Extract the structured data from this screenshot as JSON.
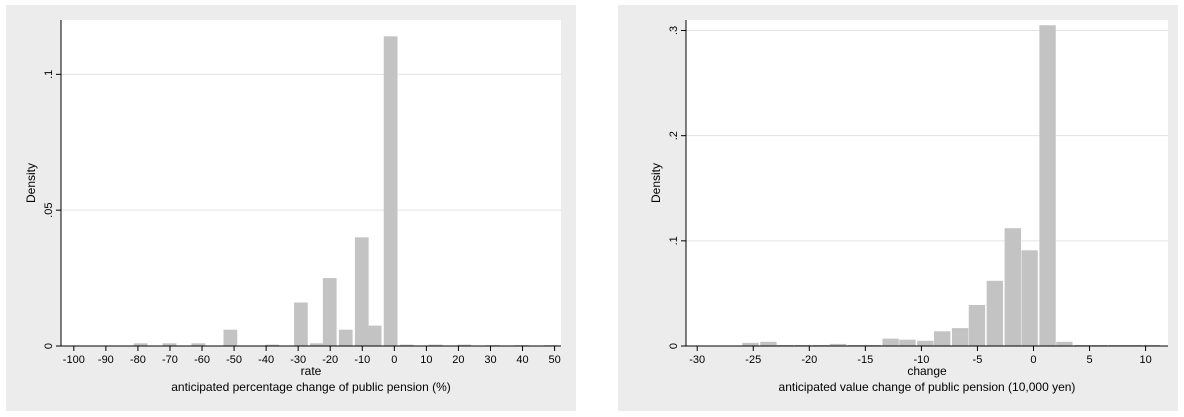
{
  "chart_data": [
    {
      "type": "bar",
      "ylabel": "Density",
      "xlabel": "rate",
      "note": "anticipated percentage change of public pension (%)",
      "xlim": [
        -104,
        52
      ],
      "ylim": [
        0,
        0.12
      ],
      "xticks": [
        -100,
        -90,
        -80,
        -70,
        -60,
        -50,
        -40,
        -30,
        -20,
        -10,
        0,
        10,
        20,
        30,
        40,
        50
      ],
      "xtick_labels": [
        "-100",
        "-90",
        "-80",
        "-70",
        "-60",
        "-50",
        "-40",
        "-30",
        "-20",
        "-10",
        "0",
        "10",
        "20",
        "30",
        "40",
        "50"
      ],
      "yticks": [
        0,
        0.05,
        0.1
      ],
      "ytick_labels": [
        "0",
        ".05",
        ".1"
      ],
      "bin_width": 4.6,
      "bars": [
        {
          "x": -79,
          "y": 0.001
        },
        {
          "x": -70,
          "y": 0.001
        },
        {
          "x": -61,
          "y": 0.001
        },
        {
          "x": -51,
          "y": 0.006
        },
        {
          "x": -38,
          "y": 0.0005
        },
        {
          "x": -29,
          "y": 0.016
        },
        {
          "x": -24,
          "y": 0.001
        },
        {
          "x": -20,
          "y": 0.025
        },
        {
          "x": -15,
          "y": 0.006
        },
        {
          "x": -10,
          "y": 0.04
        },
        {
          "x": -6,
          "y": 0.0075
        },
        {
          "x": -1,
          "y": 0.114
        },
        {
          "x": 4,
          "y": 0.0005
        },
        {
          "x": 13,
          "y": 0.0005
        },
        {
          "x": 22,
          "y": 0.0005
        },
        {
          "x": 31,
          "y": 0.0003
        },
        {
          "x": 40,
          "y": 0.0003
        },
        {
          "x": 49,
          "y": 0.0003
        }
      ],
      "grid": true,
      "colors": {
        "bar": "#c3c3c3",
        "plot_bg": "#ffffff",
        "outer_bg": "#ececec",
        "grid": "#e3e3e3"
      }
    },
    {
      "type": "bar",
      "ylabel": "Density",
      "xlabel": "change",
      "note": "anticipated value change of public pension (10,000 yen)",
      "xlim": [
        -31,
        12
      ],
      "ylim": [
        0,
        0.31
      ],
      "xticks": [
        -30,
        -25,
        -20,
        -15,
        -10,
        -5,
        0,
        5,
        10
      ],
      "xtick_labels": [
        "-30",
        "-25",
        "-20",
        "-15",
        "-10",
        "-5",
        "0",
        "5",
        "10"
      ],
      "yticks": [
        0,
        0.1,
        0.2,
        0.3
      ],
      "ytick_labels": [
        "0",
        ".1",
        ".2",
        ".3"
      ],
      "bin_width": 1.55,
      "bars": [
        {
          "x": -25.2,
          "y": 0.003
        },
        {
          "x": -23.6,
          "y": 0.004
        },
        {
          "x": -22.1,
          "y": 0.001
        },
        {
          "x": -20.5,
          "y": 0.001
        },
        {
          "x": -18.9,
          "y": 0.001
        },
        {
          "x": -17.4,
          "y": 0.002
        },
        {
          "x": -15.8,
          "y": 0.001
        },
        {
          "x": -14.3,
          "y": 0.001
        },
        {
          "x": -12.7,
          "y": 0.007
        },
        {
          "x": -11.2,
          "y": 0.006
        },
        {
          "x": -9.6,
          "y": 0.005
        },
        {
          "x": -8.1,
          "y": 0.014
        },
        {
          "x": -6.5,
          "y": 0.017
        },
        {
          "x": -5.0,
          "y": 0.039
        },
        {
          "x": -3.4,
          "y": 0.062
        },
        {
          "x": -1.8,
          "y": 0.112
        },
        {
          "x": -0.3,
          "y": 0.091
        },
        {
          "x": 1.3,
          "y": 0.305
        },
        {
          "x": 2.8,
          "y": 0.004
        },
        {
          "x": 4.4,
          "y": 0.001
        },
        {
          "x": 5.9,
          "y": 0.001
        },
        {
          "x": 7.5,
          "y": 0.001
        },
        {
          "x": 9.0,
          "y": 0.001
        },
        {
          "x": 10.6,
          "y": 0.001
        }
      ],
      "grid": true,
      "colors": {
        "bar": "#c3c3c3",
        "plot_bg": "#ffffff",
        "outer_bg": "#ececec",
        "grid": "#e3e3e3"
      }
    }
  ]
}
